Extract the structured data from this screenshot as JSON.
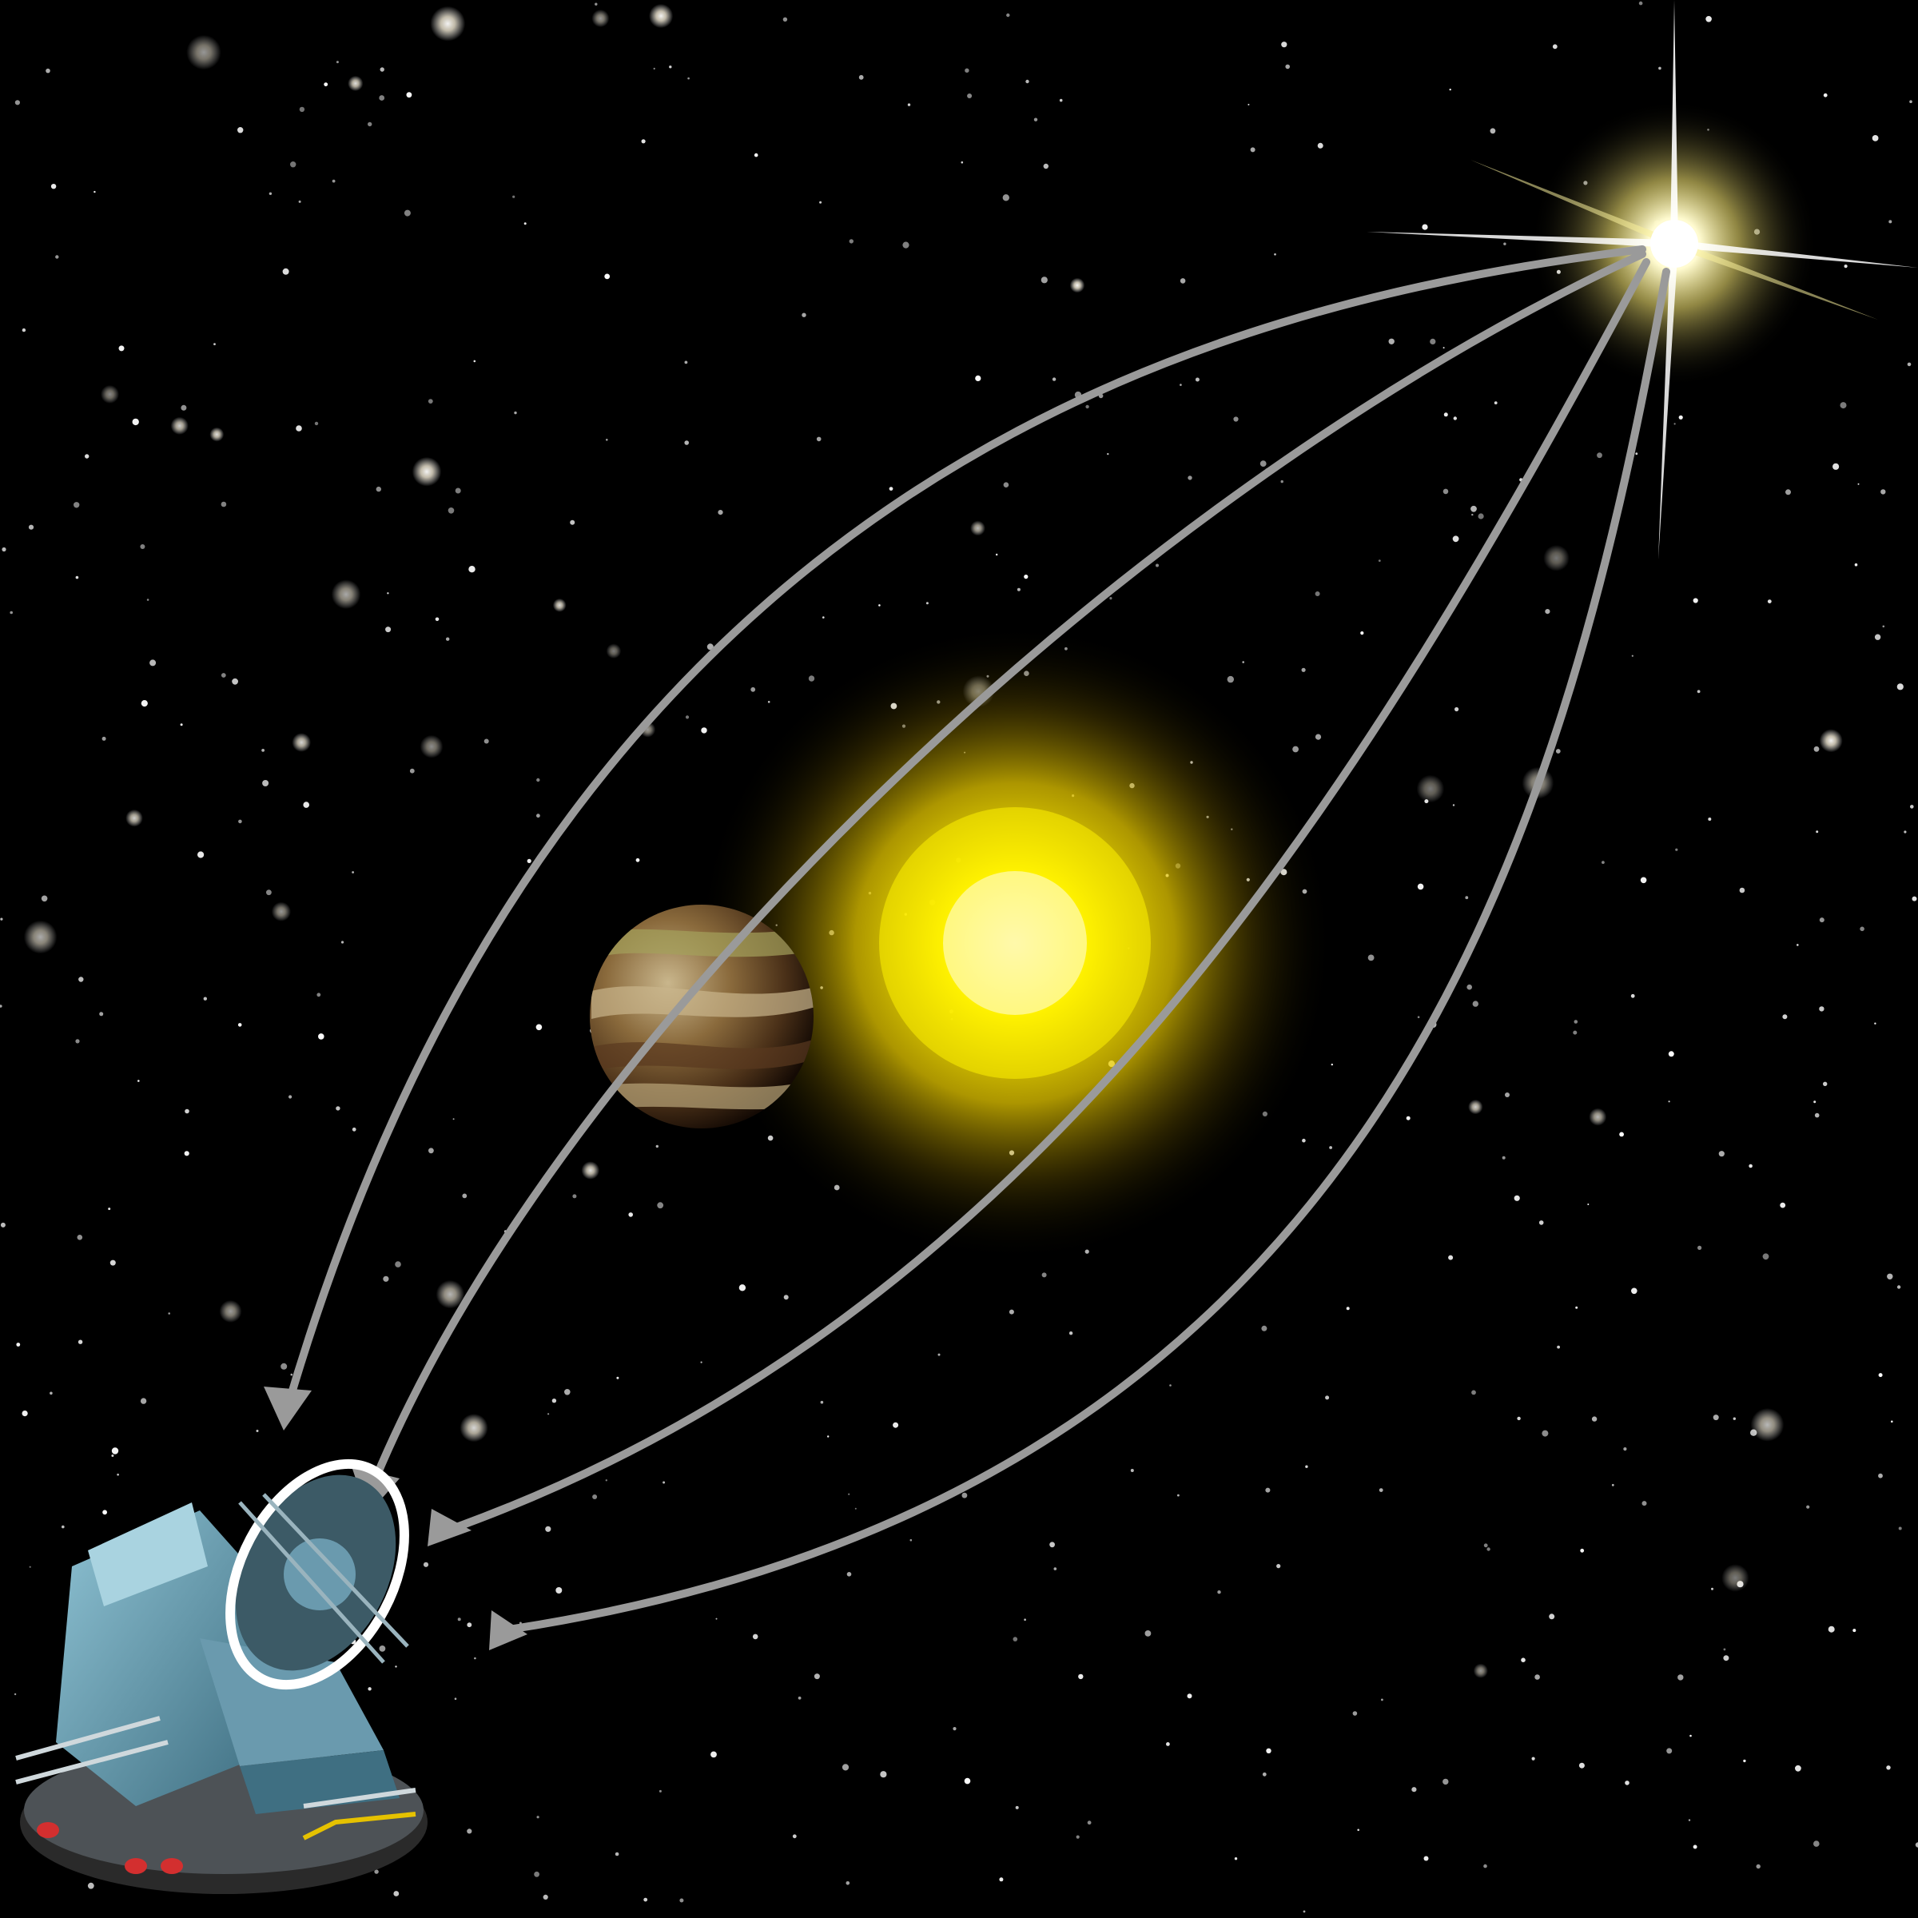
{
  "scene": {
    "background_color": "#000000",
    "source_star_color": "#fff6b0",
    "lens_star_color": "#ffe600",
    "arrow_color": "#9a9a9a",
    "telescope_color": "#5f93a8",
    "telescope_ring_color": "#ffffff",
    "planet_colors": [
      "#7a5a34",
      "#a4a25c",
      "#3e2a18",
      "#c9b68c"
    ]
  },
  "diagram": {
    "elements": [
      {
        "name": "source-star",
        "icon": "bright-star-icon"
      },
      {
        "name": "lens-star",
        "icon": "glowing-sun-icon"
      },
      {
        "name": "planet",
        "icon": "planet-icon"
      },
      {
        "name": "telescope",
        "icon": "telescope-icon"
      }
    ],
    "light_paths": 4
  }
}
